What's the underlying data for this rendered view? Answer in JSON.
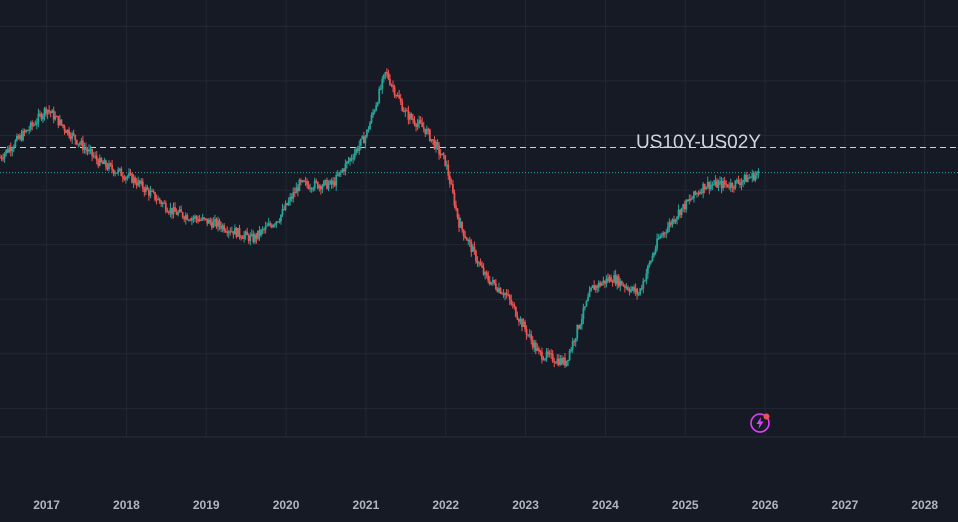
{
  "chart_data": {
    "type": "candlestick",
    "title": "US10Y-US02Y",
    "xlabel": "",
    "ylabel": "",
    "x_range": [
      "2016-06",
      "2028-06"
    ],
    "y_range_approx": [
      -1.35,
      1.6
    ],
    "grid": true,
    "x_ticks": [
      "2017",
      "2018",
      "2019",
      "2020",
      "2021",
      "2022",
      "2023",
      "2024",
      "2025",
      "2026",
      "2027",
      "2028"
    ],
    "reference_lines": [
      {
        "style": "dashed",
        "color": "#d1d4dc",
        "value": 0.89
      },
      {
        "style": "dotted",
        "color": "#26a69a",
        "value": 0.66,
        "note": "last price"
      }
    ],
    "series": [
      {
        "values_approx": [
          {
            "date": "2016-06",
            "value": 0.8
          },
          {
            "date": "2016-11",
            "value": 1.1
          },
          {
            "date": "2017-01",
            "value": 1.25
          },
          {
            "date": "2017-04",
            "value": 1.05
          },
          {
            "date": "2017-09",
            "value": 0.75
          },
          {
            "date": "2018-02",
            "value": 0.6
          },
          {
            "date": "2018-08",
            "value": 0.3
          },
          {
            "date": "2019-03",
            "value": 0.18
          },
          {
            "date": "2019-08",
            "value": 0.05
          },
          {
            "date": "2019-12",
            "value": 0.25
          },
          {
            "date": "2020-03",
            "value": 0.55
          },
          {
            "date": "2020-08",
            "value": 0.55
          },
          {
            "date": "2021-01",
            "value": 1.0
          },
          {
            "date": "2021-04",
            "value": 1.58
          },
          {
            "date": "2021-07",
            "value": 1.2
          },
          {
            "date": "2021-10",
            "value": 1.05
          },
          {
            "date": "2022-01",
            "value": 0.75
          },
          {
            "date": "2022-03",
            "value": 0.2
          },
          {
            "date": "2022-07",
            "value": -0.3
          },
          {
            "date": "2022-10",
            "value": -0.45
          },
          {
            "date": "2023-03",
            "value": -1.0
          },
          {
            "date": "2023-07",
            "value": -1.08
          },
          {
            "date": "2023-11",
            "value": -0.4
          },
          {
            "date": "2024-02",
            "value": -0.3
          },
          {
            "date": "2024-06",
            "value": -0.45
          },
          {
            "date": "2024-09",
            "value": 0.05
          },
          {
            "date": "2024-12",
            "value": 0.3
          },
          {
            "date": "2025-04",
            "value": 0.55
          },
          {
            "date": "2025-08",
            "value": 0.55
          },
          {
            "date": "2025-12",
            "value": 0.65
          }
        ]
      }
    ]
  },
  "colors": {
    "background": "#161a25",
    "grid": "#232734",
    "up": "#26a69a",
    "down": "#ef5350",
    "axis_text": "#b2b5be",
    "symbol_text": "#d1d4dc",
    "badge": "#e040fb"
  },
  "icons": {
    "badge": "lightning-icon"
  }
}
